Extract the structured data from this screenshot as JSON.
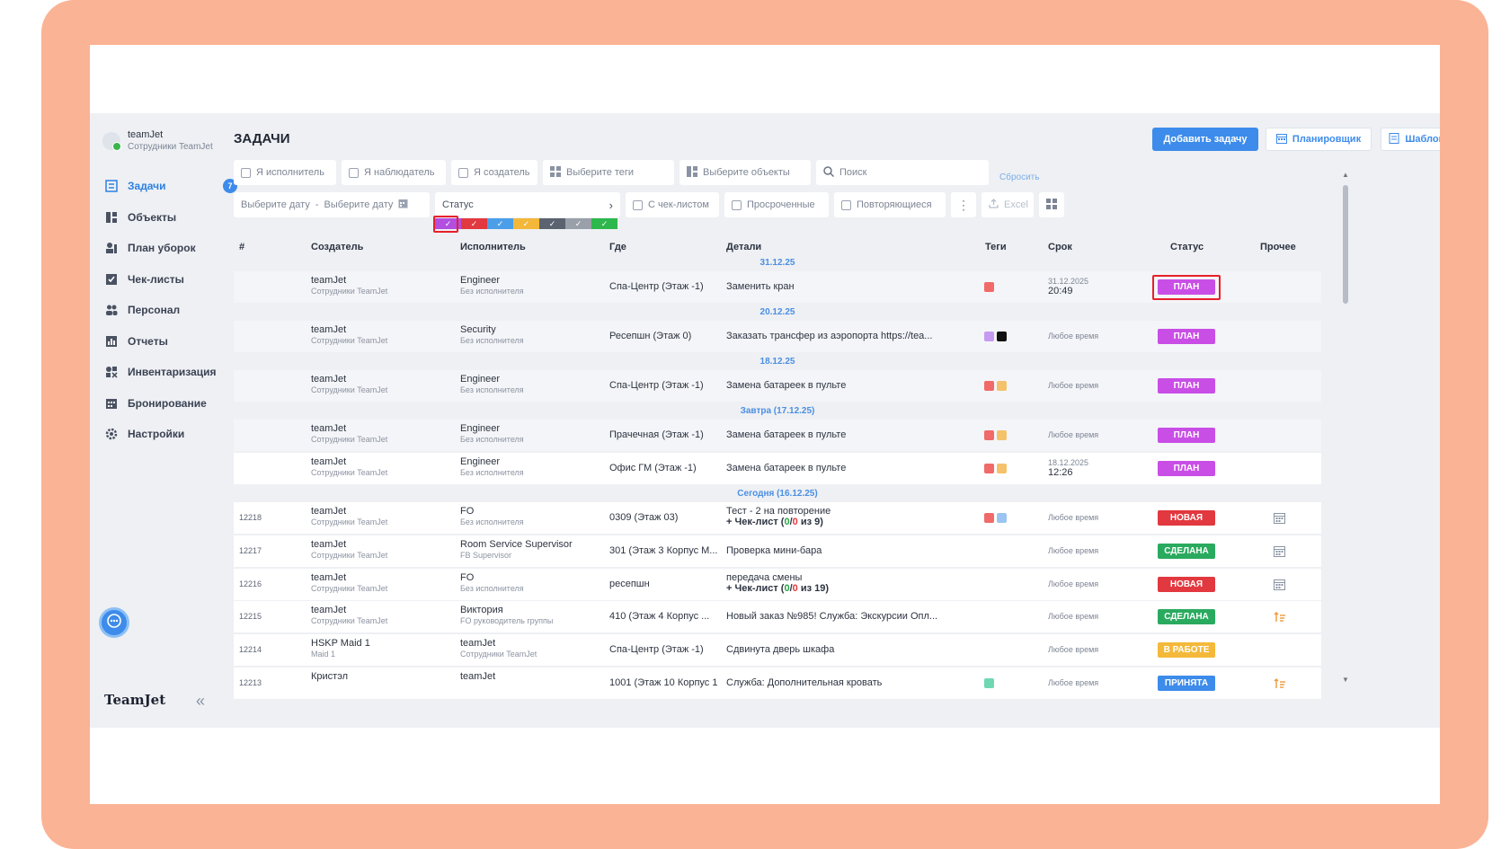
{
  "user": {
    "name": "teamJet",
    "subtitle": "Сотрудники TeamJet"
  },
  "nav": {
    "items": [
      {
        "label": "Задачи",
        "icon": "tasks-icon",
        "active": true,
        "badge": "7"
      },
      {
        "label": "Объекты",
        "icon": "objects-icon"
      },
      {
        "label": "План уборок",
        "icon": "cleaning-plan-icon"
      },
      {
        "label": "Чек-листы",
        "icon": "checklist-icon"
      },
      {
        "label": "Персонал",
        "icon": "staff-icon"
      },
      {
        "label": "Отчеты",
        "icon": "reports-icon"
      },
      {
        "label": "Инвентаризация",
        "icon": "inventory-icon"
      },
      {
        "label": "Бронирование",
        "icon": "booking-icon"
      },
      {
        "label": "Настройки",
        "icon": "settings-icon"
      }
    ],
    "logo": "TeamJet"
  },
  "header": {
    "title": "ЗАДАЧИ",
    "add_task": "Добавить задачу",
    "planner": "Планировщик",
    "templates": "Шаблоны",
    "help": "?"
  },
  "filters": {
    "executor": "Я исполнитель",
    "observer": "Я наблюдатель",
    "creator": "Я создатель",
    "tags": "Выберите теги",
    "objects": "Выберите объекты",
    "search_placeholder": "Поиск",
    "reset": "Сбросить",
    "date_from": "Выберите дату",
    "date_sep": "-",
    "date_to": "Выберите дату",
    "status": "Статус",
    "with_checklist": "С чек-листом",
    "overdue": "Просроченные",
    "repeating": "Повторяющиеся",
    "excel": "Excel"
  },
  "status_swatches": [
    "#b24ee0",
    "#e2383f",
    "#4b9fe8",
    "#f3b73a",
    "#5b6270",
    "#9aa0aa",
    "#2db84d"
  ],
  "table": {
    "headers": [
      "#",
      "Создатель",
      "Исполнитель",
      "Где",
      "Детали",
      "Теги",
      "Срок",
      "Статус",
      "Прочее"
    ]
  },
  "groups": [
    "31.12.25",
    "20.12.25",
    "18.12.25",
    "Завтра (17.12.25)",
    "Сегодня (16.12.25)"
  ],
  "rows": [
    {
      "id": "",
      "creator": "teamJet",
      "creator_sub": "Сотрудники TeamJet",
      "exec": "Engineer",
      "exec_sub": "Без исполнителя",
      "where": "Спа-Центр (Этаж -1)",
      "details": "Заменить кран",
      "due_date": "31.12.2025",
      "due_time": "20:49",
      "status": "ПЛАН"
    },
    {
      "id": "",
      "creator": "teamJet",
      "creator_sub": "Сотрудники TeamJet",
      "exec": "Security",
      "exec_sub": "Без исполнителя",
      "where": "Ресепшн (Этаж 0)",
      "details": "Заказать трансфер из аэропорта https://tea...",
      "due": "Любое время",
      "status": "ПЛАН"
    },
    {
      "id": "",
      "creator": "teamJet",
      "creator_sub": "Сотрудники TeamJet",
      "exec": "Engineer",
      "exec_sub": "Без исполнителя",
      "where": "Спа-Центр (Этаж -1)",
      "details": "Замена батареек в пульте",
      "due": "Любое время",
      "status": "ПЛАН"
    },
    {
      "id": "",
      "creator": "teamJet",
      "creator_sub": "Сотрудники TeamJet",
      "exec": "Engineer",
      "exec_sub": "Без исполнителя",
      "where": "Прачечная (Этаж -1)",
      "details": "Замена батареек в пульте",
      "due": "Любое время",
      "status": "ПЛАН"
    },
    {
      "id": "",
      "creator": "teamJet",
      "creator_sub": "Сотрудники TeamJet",
      "exec": "Engineer",
      "exec_sub": "Без исполнителя",
      "where": "Офис ГМ (Этаж -1)",
      "details": "Замена батареек в пульте",
      "due_date": "18.12.2025",
      "due_time": "12:26",
      "status": "ПЛАН"
    },
    {
      "id": "12218",
      "creator": "teamJet",
      "creator_sub": "Сотрудники TeamJet",
      "exec": "FO",
      "exec_sub": "Без исполнителя",
      "where": "0309 (Этаж 03)",
      "details": "Тест - 2 на повторение",
      "check_prefix": "+ Чек-лист (",
      "check_done": "0",
      "check_sep": "/",
      "check_fail": "0",
      "check_suffix": " из 9)",
      "due": "Любое время",
      "status": "НОВАЯ"
    },
    {
      "id": "12217",
      "creator": "teamJet",
      "creator_sub": "Сотрудники TeamJet",
      "exec": "Room Service Supervisor",
      "exec_sub": "FB Supervisor",
      "where": "301 (Этаж 3 Корпус М...",
      "details": "Проверка мини-бара",
      "due": "Любое время",
      "status": "СДЕЛАНА"
    },
    {
      "id": "12216",
      "creator": "teamJet",
      "creator_sub": "Сотрудники TeamJet",
      "exec": "FO",
      "exec_sub": "Без исполнителя",
      "where": "ресепшн",
      "details": "передача смены",
      "check_prefix": "+ Чек-лист (",
      "check_done": "0",
      "check_sep": "/",
      "check_fail": "0",
      "check_suffix": " из 19)",
      "due": "Любое время",
      "status": "НОВАЯ"
    },
    {
      "id": "12215",
      "creator": "teamJet",
      "creator_sub": "Сотрудники TeamJet",
      "exec": "Виктория",
      "exec_sub": "FO руководитель группы",
      "where": "410 (Этаж 4 Корпус ...",
      "details": "Новый заказ №985! Служба: Экскурсии Опл...",
      "due": "Любое время",
      "status": "СДЕЛАНА"
    },
    {
      "id": "12214",
      "creator": "HSKP Maid 1",
      "creator_sub": "Maid 1",
      "exec": "teamJet",
      "exec_sub": "Сотрудники TeamJet",
      "where": "Спа-Центр (Этаж -1)",
      "details": "Сдвинута дверь шкафа",
      "due": "Любое время",
      "status": "В РАБОТЕ"
    },
    {
      "id": "12213",
      "creator": "Кристэл",
      "creator_sub": "",
      "exec": "teamJet",
      "exec_sub": "",
      "where": "1001 (Этаж 10 Корпус 1)",
      "details": "Служба: Дополнительная кровать",
      "due": "Любое время",
      "status": "ПРИНЯТА"
    }
  ],
  "colors": {
    "accent": "#3d8bea",
    "plan": "#c94ee6",
    "new": "#e2383f",
    "done": "#2aaa5f",
    "in_progress": "#f4b93a",
    "accepted": "#3d8bea",
    "highlight": "#e8202a"
  }
}
